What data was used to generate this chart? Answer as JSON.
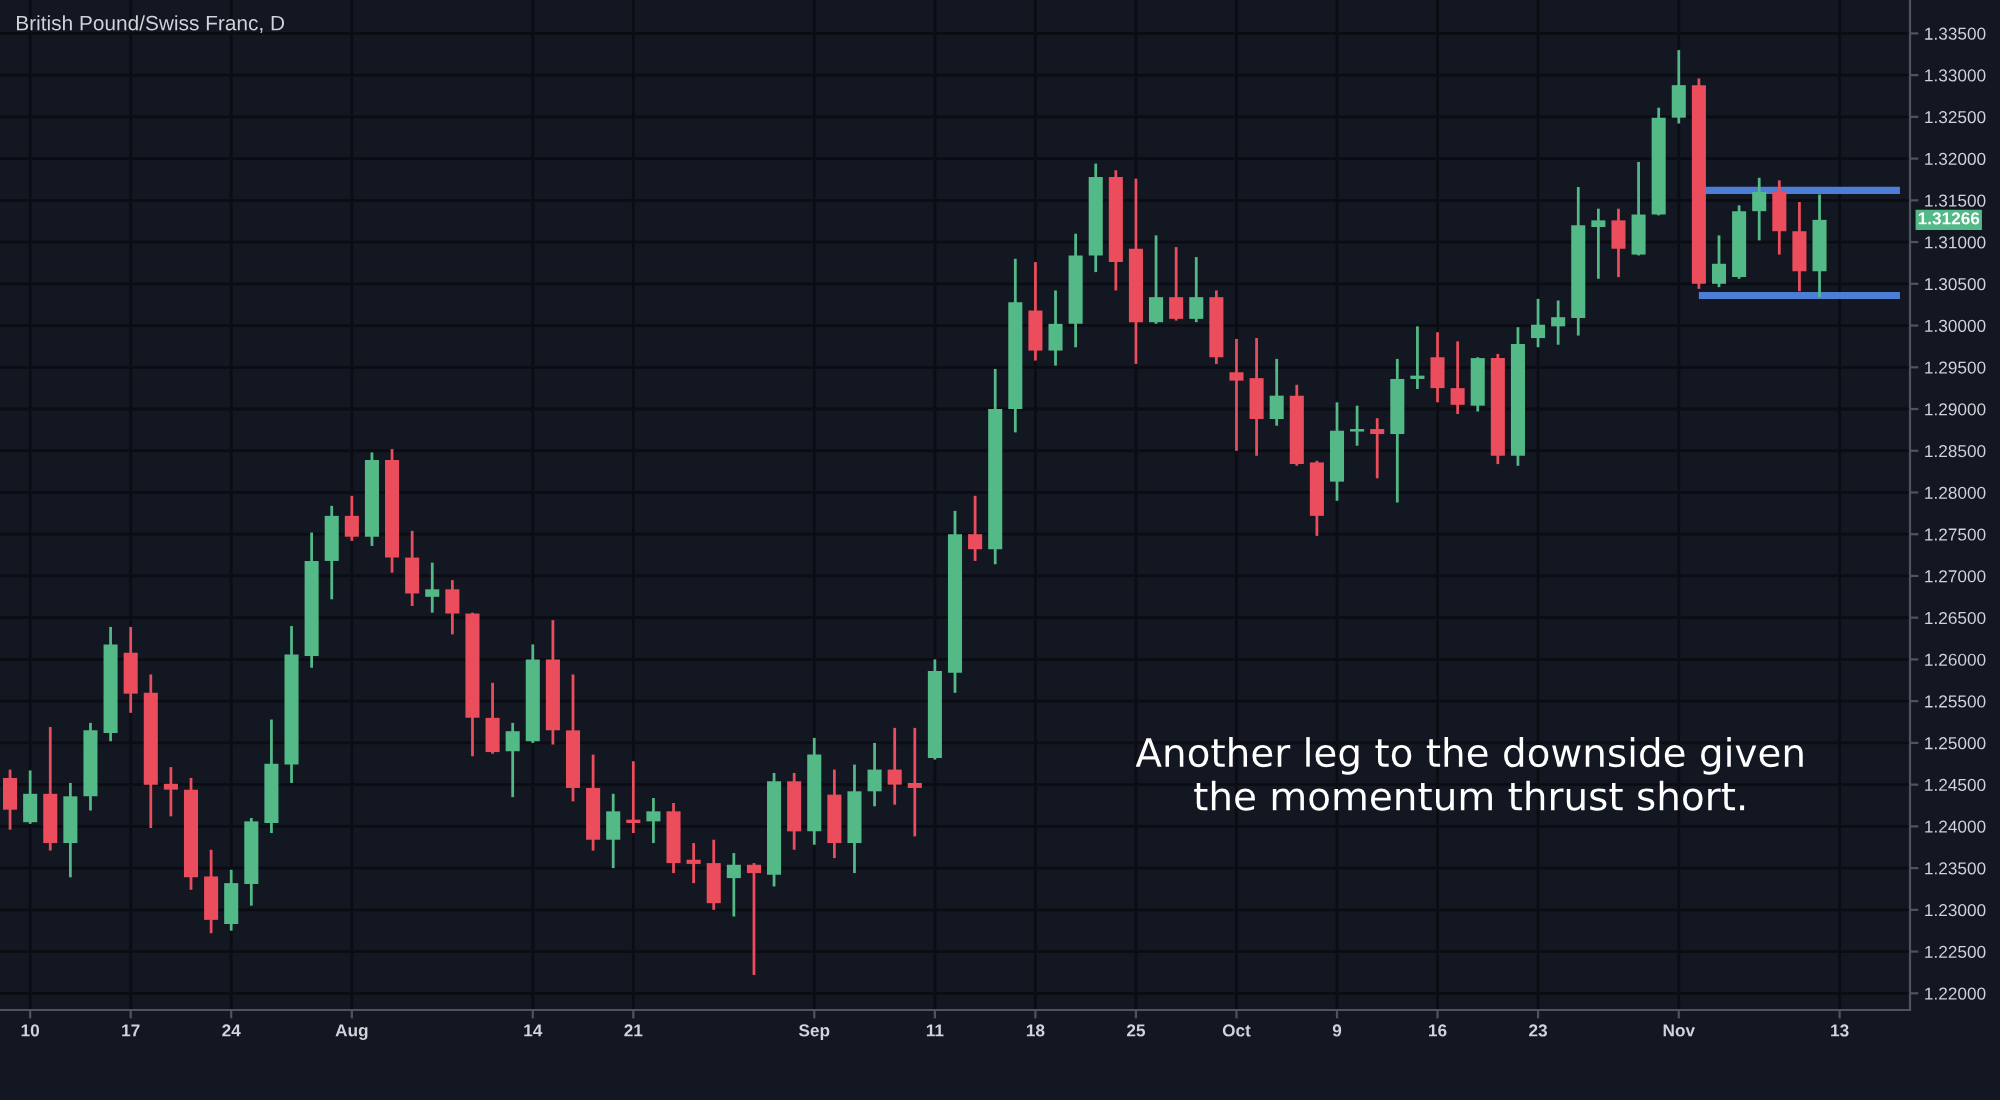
{
  "chart_data": {
    "type": "candlestick",
    "title": "British Pound/Swiss Franc, D",
    "categories": [
      null,
      "10",
      null,
      null,
      null,
      null,
      "17",
      null,
      null,
      null,
      null,
      "24",
      null,
      null,
      null,
      null,
      null,
      "Aug",
      null,
      null,
      null,
      null,
      null,
      null,
      null,
      null,
      "14",
      null,
      null,
      null,
      null,
      "21",
      null,
      null,
      null,
      null,
      null,
      null,
      null,
      null,
      "Sep",
      null,
      null,
      null,
      null,
      null,
      "11",
      null,
      null,
      null,
      null,
      "18",
      null,
      null,
      null,
      null,
      "25",
      null,
      null,
      null,
      null,
      "Oct",
      null,
      null,
      null,
      null,
      "9",
      null,
      null,
      null,
      null,
      "16",
      null,
      null,
      null,
      null,
      "23",
      null,
      null,
      null,
      null,
      null,
      null,
      "Nov",
      null,
      null,
      null,
      null,
      null,
      null,
      null,
      "13",
      null,
      null,
      null
    ],
    "ohlc": [
      [
        1.2458,
        1.2468,
        1.2396,
        1.242
      ],
      [
        1.2405,
        1.2467,
        1.2403,
        1.2439
      ],
      [
        1.2439,
        1.2519,
        1.2371,
        1.238
      ],
      [
        1.238,
        1.2452,
        1.2339,
        1.2436
      ],
      [
        1.2436,
        1.2524,
        1.2419,
        1.2515
      ],
      [
        1.2512,
        1.2639,
        1.2502,
        1.2618
      ],
      [
        1.2608,
        1.2639,
        1.2536,
        1.2559
      ],
      [
        1.256,
        1.2582,
        1.2398,
        1.245
      ],
      [
        1.2451,
        1.2471,
        1.2412,
        1.2444
      ],
      [
        1.2444,
        1.2458,
        1.2324,
        1.2339
      ],
      [
        1.234,
        1.2372,
        1.2272,
        1.2288
      ],
      [
        1.2283,
        1.2348,
        1.2275,
        1.2332
      ],
      [
        1.2331,
        1.241,
        1.2305,
        1.2406
      ],
      [
        1.2404,
        1.2528,
        1.2392,
        1.2475
      ],
      [
        1.2474,
        1.264,
        1.2452,
        1.2606
      ],
      [
        1.2604,
        1.2752,
        1.259,
        1.2718
      ],
      [
        1.2718,
        1.2784,
        1.2672,
        1.2772
      ],
      [
        1.2772,
        1.2796,
        1.2742,
        1.2747
      ],
      [
        1.2747,
        1.2848,
        1.2736,
        1.2839
      ],
      [
        1.2839,
        1.2852,
        1.2704,
        1.2722
      ],
      [
        1.2722,
        1.2754,
        1.2664,
        1.2679
      ],
      [
        1.2675,
        1.2716,
        1.2656,
        1.2684
      ],
      [
        1.2684,
        1.2695,
        1.263,
        1.2655
      ],
      [
        1.2655,
        1.2656,
        1.2484,
        1.253
      ],
      [
        1.253,
        1.2572,
        1.2487,
        1.2489
      ],
      [
        1.249,
        1.2524,
        1.2435,
        1.2514
      ],
      [
        1.2502,
        1.2618,
        1.25,
        1.26
      ],
      [
        1.26,
        1.2647,
        1.2498,
        1.2515
      ],
      [
        1.2515,
        1.2582,
        1.243,
        1.2446
      ],
      [
        1.2446,
        1.2486,
        1.2371,
        1.2384
      ],
      [
        1.2384,
        1.2439,
        1.235,
        1.2418
      ],
      [
        1.2408,
        1.2478,
        1.2392,
        1.2404
      ],
      [
        1.2406,
        1.2434,
        1.238,
        1.2418
      ],
      [
        1.2418,
        1.2428,
        1.2344,
        1.2356
      ],
      [
        1.236,
        1.238,
        1.2332,
        1.2355
      ],
      [
        1.2356,
        1.2384,
        1.23,
        1.2308
      ],
      [
        1.2338,
        1.2368,
        1.2292,
        1.2354
      ],
      [
        1.2354,
        1.2356,
        1.2222,
        1.2344
      ],
      [
        1.2342,
        1.2464,
        1.2328,
        1.2454
      ],
      [
        1.2454,
        1.2464,
        1.2372,
        1.2394
      ],
      [
        1.2394,
        1.2506,
        1.2378,
        1.2486
      ],
      [
        1.2438,
        1.2468,
        1.2362,
        1.238
      ],
      [
        1.238,
        1.2474,
        1.2344,
        1.2442
      ],
      [
        1.2442,
        1.25,
        1.2424,
        1.2468
      ],
      [
        1.2468,
        1.2518,
        1.2426,
        1.245
      ],
      [
        1.2452,
        1.2518,
        1.2388,
        1.2446
      ],
      [
        1.2482,
        1.26,
        1.248,
        1.2586
      ],
      [
        1.2584,
        1.2778,
        1.256,
        1.275
      ],
      [
        1.275,
        1.2796,
        1.2718,
        1.2732
      ],
      [
        1.2732,
        1.2948,
        1.2714,
        1.29
      ],
      [
        1.29,
        1.308,
        1.2872,
        1.3028
      ],
      [
        1.3018,
        1.3076,
        1.2958,
        1.297
      ],
      [
        1.297,
        1.3042,
        1.2952,
        1.3002
      ],
      [
        1.3002,
        1.311,
        1.2974,
        1.3084
      ],
      [
        1.3084,
        1.3194,
        1.3064,
        1.3178
      ],
      [
        1.3178,
        1.3186,
        1.3042,
        1.3076
      ],
      [
        1.3092,
        1.3176,
        1.2954,
        1.3004
      ],
      [
        1.3004,
        1.3108,
        1.3002,
        1.3034
      ],
      [
        1.3034,
        1.3094,
        1.3006,
        1.3008
      ],
      [
        1.3008,
        1.3082,
        1.3004,
        1.3034
      ],
      [
        1.3034,
        1.3042,
        1.2954,
        1.2962
      ],
      [
        1.2944,
        1.2984,
        1.285,
        1.2934
      ],
      [
        1.2937,
        1.2985,
        1.2844,
        1.2888
      ],
      [
        1.2888,
        1.296,
        1.288,
        1.2916
      ],
      [
        1.2916,
        1.2929,
        1.2832,
        1.2834
      ],
      [
        1.2836,
        1.2838,
        1.2748,
        1.2772
      ],
      [
        1.2813,
        1.2908,
        1.279,
        1.2874
      ],
      [
        1.2873,
        1.2904,
        1.2856,
        1.2876
      ],
      [
        1.2876,
        1.2889,
        1.2817,
        1.287
      ],
      [
        1.287,
        1.296,
        1.2788,
        1.2936
      ],
      [
        1.2936,
        1.2999,
        1.2924,
        1.294
      ],
      [
        1.2962,
        1.2992,
        1.2908,
        1.2925
      ],
      [
        1.2925,
        1.2981,
        1.2894,
        1.2905
      ],
      [
        1.2904,
        1.2962,
        1.2897,
        1.2961
      ],
      [
        1.2961,
        1.2966,
        1.2834,
        1.2844
      ],
      [
        1.2844,
        1.2998,
        1.2832,
        1.2978
      ],
      [
        1.2985,
        1.3032,
        1.2974,
        1.3001
      ],
      [
        1.2999,
        1.303,
        1.2977,
        1.301
      ],
      [
        1.3009,
        1.3166,
        1.2988,
        1.312
      ],
      [
        1.3118,
        1.314,
        1.3056,
        1.3126
      ],
      [
        1.3126,
        1.314,
        1.3058,
        1.3092
      ],
      [
        1.3085,
        1.3196,
        1.3084,
        1.3133
      ],
      [
        1.3133,
        1.3261,
        1.3132,
        1.3249
      ],
      [
        1.3249,
        1.333,
        1.3242,
        1.3288
      ],
      [
        1.3288,
        1.3296,
        1.3044,
        1.305
      ],
      [
        1.305,
        1.3108,
        1.3046,
        1.3074
      ],
      [
        1.3058,
        1.3144,
        1.3056,
        1.3137
      ],
      [
        1.3137,
        1.3177,
        1.3102,
        1.316
      ],
      [
        1.316,
        1.3174,
        1.3085,
        1.3113
      ],
      [
        1.3113,
        1.3148,
        1.3041,
        1.3065
      ],
      [
        1.3065,
        1.3157,
        1.3034,
        1.31266
      ],
      null,
      null,
      null,
      null
    ],
    "colors": [
      "#eb4d5c",
      "#53b987",
      "#eb4d5c",
      "#53b987",
      "#53b987",
      "#53b987",
      "#eb4d5c",
      "#eb4d5c",
      "#eb4d5c",
      "#eb4d5c",
      "#eb4d5c",
      "#53b987",
      "#53b987",
      "#53b987",
      "#53b987",
      "#53b987",
      "#53b987",
      "#eb4d5c",
      "#53b987",
      "#eb4d5c",
      "#eb4d5c",
      "#53b987",
      "#eb4d5c",
      "#eb4d5c",
      "#eb4d5c",
      "#53b987",
      "#53b987",
      "#eb4d5c",
      "#eb4d5c",
      "#eb4d5c",
      "#53b987",
      "#eb4d5c",
      "#53b987",
      "#eb4d5c",
      "#eb4d5c",
      "#eb4d5c",
      "#53b987",
      "#eb4d5c",
      "#53b987",
      "#eb4d5c",
      "#53b987",
      "#eb4d5c",
      "#53b987",
      "#53b987",
      "#eb4d5c",
      "#eb4d5c",
      "#53b987",
      "#53b987",
      "#eb4d5c",
      "#53b987",
      "#53b987",
      "#eb4d5c",
      "#53b987",
      "#53b987",
      "#53b987",
      "#eb4d5c",
      "#eb4d5c",
      "#53b987",
      "#eb4d5c",
      "#53b987",
      "#eb4d5c",
      "#eb4d5c",
      "#eb4d5c",
      "#53b987",
      "#eb4d5c",
      "#eb4d5c",
      "#53b987",
      "#53b987",
      "#eb4d5c",
      "#53b987",
      "#53b987",
      "#eb4d5c",
      "#eb4d5c",
      "#53b987",
      "#eb4d5c",
      "#53b987",
      "#53b987",
      "#53b987",
      "#53b987",
      "#53b987",
      "#eb4d5c",
      "#53b987",
      "#53b987",
      "#53b987",
      "#eb4d5c",
      "#53b987",
      "#53b987",
      "#53b987",
      "#eb4d5c",
      "#eb4d5c",
      "#53b987",
      null,
      null,
      null,
      null
    ],
    "series": [
      {
        "type": "line",
        "color": "#4d7ed6",
        "values": [
          null,
          null,
          null,
          null,
          null,
          null,
          null,
          null,
          null,
          null,
          null,
          null,
          null,
          null,
          null,
          null,
          null,
          null,
          null,
          null,
          null,
          null,
          null,
          null,
          null,
          null,
          null,
          null,
          null,
          null,
          null,
          null,
          null,
          null,
          null,
          null,
          null,
          null,
          null,
          null,
          null,
          null,
          null,
          null,
          null,
          null,
          null,
          null,
          null,
          null,
          null,
          null,
          null,
          null,
          null,
          null,
          null,
          null,
          null,
          null,
          null,
          null,
          null,
          null,
          null,
          null,
          null,
          null,
          null,
          null,
          null,
          null,
          null,
          null,
          null,
          null,
          null,
          null,
          null,
          null,
          null,
          null,
          null,
          null,
          1.3162,
          1.3162,
          1.3162,
          1.3162,
          1.3162,
          1.3162,
          1.3162,
          1.3162,
          1.3162,
          1.3162,
          1.3162
        ]
      },
      {
        "type": "line",
        "color": "#4d7ed6",
        "values": [
          null,
          null,
          null,
          null,
          null,
          null,
          null,
          null,
          null,
          null,
          null,
          null,
          null,
          null,
          null,
          null,
          null,
          null,
          null,
          null,
          null,
          null,
          null,
          null,
          null,
          null,
          null,
          null,
          null,
          null,
          null,
          null,
          null,
          null,
          null,
          null,
          null,
          null,
          null,
          null,
          null,
          null,
          null,
          null,
          null,
          null,
          null,
          null,
          null,
          null,
          null,
          null,
          null,
          null,
          null,
          null,
          null,
          null,
          null,
          null,
          null,
          null,
          null,
          null,
          null,
          null,
          null,
          null,
          null,
          null,
          null,
          null,
          null,
          null,
          null,
          null,
          null,
          null,
          null,
          null,
          null,
          null,
          null,
          null,
          1.3036,
          1.3036,
          1.3036,
          1.3036,
          1.3036,
          1.3036,
          1.3036,
          1.3036,
          1.3036,
          1.3036,
          1.3036
        ]
      }
    ],
    "ylim": [
      1.218,
      1.339
    ],
    "yticks": [
      {
        "value": 1.22,
        "label": "1.22000"
      },
      {
        "value": 1.225,
        "label": "1.22500"
      },
      {
        "value": 1.23,
        "label": "1.23000"
      },
      {
        "value": 1.235,
        "label": "1.23500"
      },
      {
        "value": 1.24,
        "label": "1.24000"
      },
      {
        "value": 1.245,
        "label": "1.24500"
      },
      {
        "value": 1.25,
        "label": "1.25000"
      },
      {
        "value": 1.255,
        "label": "1.25500"
      },
      {
        "value": 1.26,
        "label": "1.26000"
      },
      {
        "value": 1.265,
        "label": "1.26500"
      },
      {
        "value": 1.27,
        "label": "1.27000"
      },
      {
        "value": 1.275,
        "label": "1.27500"
      },
      {
        "value": 1.28,
        "label": "1.28000"
      },
      {
        "value": 1.285,
        "label": "1.28500"
      },
      {
        "value": 1.29,
        "label": "1.29000"
      },
      {
        "value": 1.295,
        "label": "1.29500"
      },
      {
        "value": 1.3,
        "label": "1.30000"
      },
      {
        "value": 1.305,
        "label": "1.30500"
      },
      {
        "value": 1.31,
        "label": "1.31000"
      },
      {
        "value": 1.315,
        "label": "1.31500"
      },
      {
        "value": 1.32,
        "label": "1.32000"
      },
      {
        "value": 1.325,
        "label": "1.32500"
      },
      {
        "value": 1.33,
        "label": "1.33000"
      },
      {
        "value": 1.335,
        "label": "1.33500"
      }
    ],
    "grid": true,
    "annotations": [
      "Another leg to the downside given\nthe momentum thrust short.",
      {
        "text": "1.31266",
        "y": 1.31266
      }
    ]
  }
}
